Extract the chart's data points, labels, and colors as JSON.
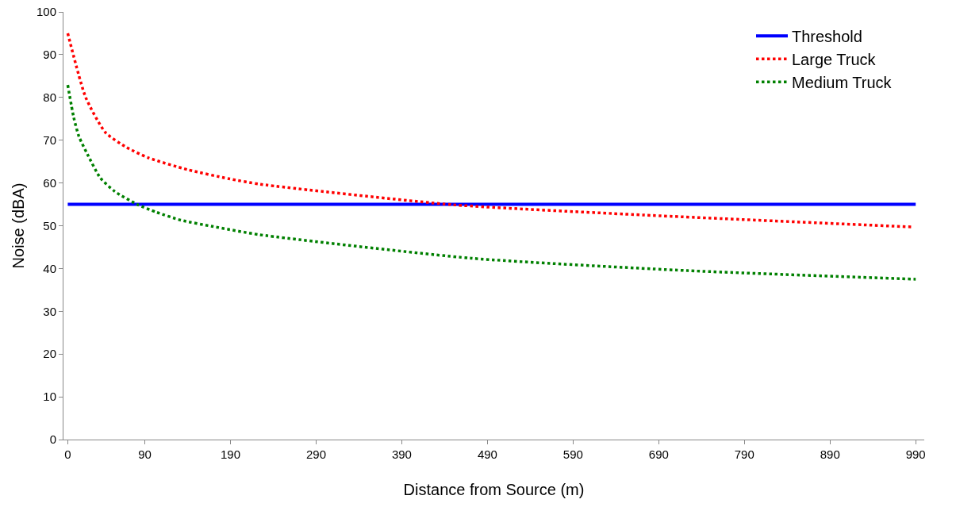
{
  "chart_data": {
    "type": "line",
    "xlabel": "Distance from Source (m)",
    "ylabel": "Noise (dBA)",
    "xlim": [
      -5,
      1000
    ],
    "xticks": [
      0,
      90,
      190,
      290,
      390,
      490,
      590,
      690,
      790,
      890,
      990
    ],
    "ylim": [
      0,
      100
    ],
    "yticks": [
      0,
      10,
      20,
      30,
      40,
      50,
      60,
      70,
      80,
      90,
      100
    ],
    "grid": false,
    "legend": "top right",
    "marker": "none",
    "series": [
      {
        "name": "Threshold",
        "color": "#0000ff",
        "line_style": "solid",
        "x": [
          0,
          990
        ],
        "values": [
          55,
          55
        ]
      },
      {
        "name": "Large Truck",
        "color": "#ff0000",
        "line_style": "dotted",
        "x": [
          0,
          21,
          44,
          68,
          94,
          140,
          188,
          225,
          450,
          673,
          987
        ],
        "values": [
          95,
          80,
          71.8,
          68.4,
          65.9,
          63.1,
          61,
          59.7,
          54.9,
          52.5,
          49.7
        ]
      },
      {
        "name": "Medium Truck",
        "color": "#008000",
        "line_style": "dotted",
        "x": [
          0,
          7,
          13,
          23,
          38,
          55,
          82,
          103,
          132,
          170,
          224,
          471,
          724,
          990
        ],
        "values": [
          82.9,
          75.3,
          70.9,
          66.7,
          61.2,
          58,
          54.9,
          53.2,
          51.3,
          49.8,
          47.9,
          42.4,
          39.5,
          37.5
        ]
      }
    ]
  }
}
